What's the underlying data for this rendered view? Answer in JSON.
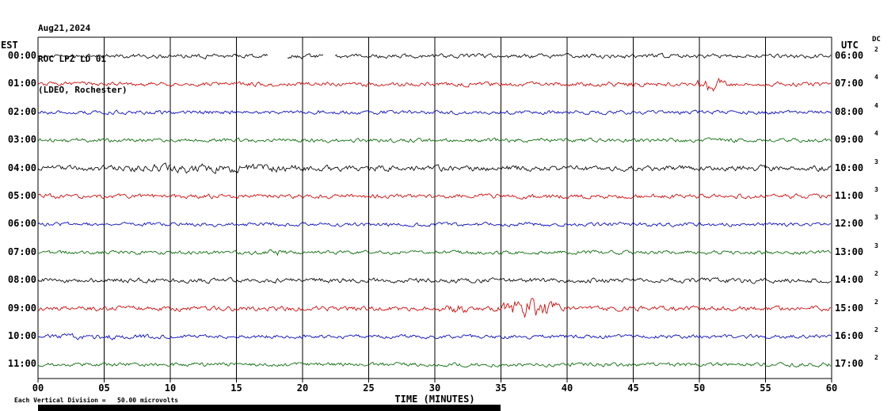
{
  "header": {
    "date_line": "Aug21,2024",
    "station_line": "ROC LPZ LD 01",
    "location_line": "(LDEO, Rochester)"
  },
  "axes": {
    "left_tz": "EST",
    "right_tz": "UTC",
    "dc_label": "DC",
    "xlabel": "TIME (MINUTES)",
    "x_ticks": [
      "00",
      "05",
      "10",
      "15",
      "20",
      "25",
      "30",
      "35",
      "40",
      "45",
      "50",
      "55",
      "60"
    ]
  },
  "footer": {
    "scale_note": "Each Vertical Division =   50.00 microvolts"
  },
  "chart_data": {
    "type": "line",
    "title": "ROC LPZ LD 01 (LDEO, Rochester) helicorder — Aug21,2024",
    "xlabel": "TIME (MINUTES)",
    "x_range_minutes": [
      0,
      60
    ],
    "minutes_per_division": 5,
    "vertical_division_microvolts": 50.0,
    "trace_color_cycle": [
      "#000000",
      "#cc0000",
      "#0000bb",
      "#006600"
    ],
    "rows": [
      {
        "est": "00:00",
        "utc": "06:00",
        "color": "#000000",
        "dc": "2",
        "seed": 11,
        "base_amp": 1.0,
        "gaps": [
          [
            17.4,
            18.8
          ],
          [
            21.6,
            22.4
          ]
        ],
        "events": []
      },
      {
        "est": "01:00",
        "utc": "07:00",
        "color": "#cc0000",
        "dc": "4",
        "seed": 22,
        "base_amp": 1.0,
        "gaps": [],
        "events": [
          {
            "start": 49.3,
            "end": 52.2,
            "amp": 2.2
          },
          {
            "start": 44.0,
            "end": 46.0,
            "amp": 0.7
          }
        ]
      },
      {
        "est": "02:00",
        "utc": "08:00",
        "color": "#0000bb",
        "dc": "4",
        "seed": 33,
        "base_amp": 0.9,
        "gaps": [],
        "events": []
      },
      {
        "est": "03:00",
        "utc": "09:00",
        "color": "#006600",
        "dc": "4",
        "seed": 44,
        "base_amp": 0.9,
        "gaps": [],
        "events": []
      },
      {
        "est": "04:00",
        "utc": "10:00",
        "color": "#000000",
        "dc": "3",
        "seed": 55,
        "base_amp": 1.3,
        "gaps": [],
        "events": [
          {
            "start": 4.0,
            "end": 22.0,
            "amp": 0.6
          }
        ]
      },
      {
        "est": "05:00",
        "utc": "11:00",
        "color": "#cc0000",
        "dc": "3",
        "seed": 66,
        "base_amp": 1.0,
        "gaps": [],
        "events": []
      },
      {
        "est": "06:00",
        "utc": "12:00",
        "color": "#0000bb",
        "dc": "3",
        "seed": 77,
        "base_amp": 0.9,
        "gaps": [],
        "events": []
      },
      {
        "est": "07:00",
        "utc": "13:00",
        "color": "#006600",
        "dc": "3",
        "seed": 88,
        "base_amp": 0.9,
        "gaps": [],
        "events": [
          {
            "start": 17.0,
            "end": 19.0,
            "amp": 0.8
          }
        ]
      },
      {
        "est": "08:00",
        "utc": "14:00",
        "color": "#000000",
        "dc": "2",
        "seed": 99,
        "base_amp": 1.1,
        "gaps": [],
        "events": []
      },
      {
        "est": "09:00",
        "utc": "15:00",
        "color": "#cc0000",
        "dc": "2",
        "seed": 111,
        "base_amp": 1.1,
        "gaps": [],
        "events": [
          {
            "start": 34.5,
            "end": 40.0,
            "amp": 3.0
          },
          {
            "start": 30.0,
            "end": 33.0,
            "amp": 1.0
          }
        ]
      },
      {
        "est": "10:00",
        "utc": "16:00",
        "color": "#0000bb",
        "dc": "2",
        "seed": 122,
        "base_amp": 0.9,
        "gaps": [],
        "events": [
          {
            "start": 0.0,
            "end": 10.0,
            "amp": 0.5
          }
        ]
      },
      {
        "est": "11:00",
        "utc": "17:00",
        "color": "#006600",
        "dc": "2",
        "seed": 133,
        "base_amp": 0.9,
        "gaps": [],
        "events": []
      }
    ]
  }
}
